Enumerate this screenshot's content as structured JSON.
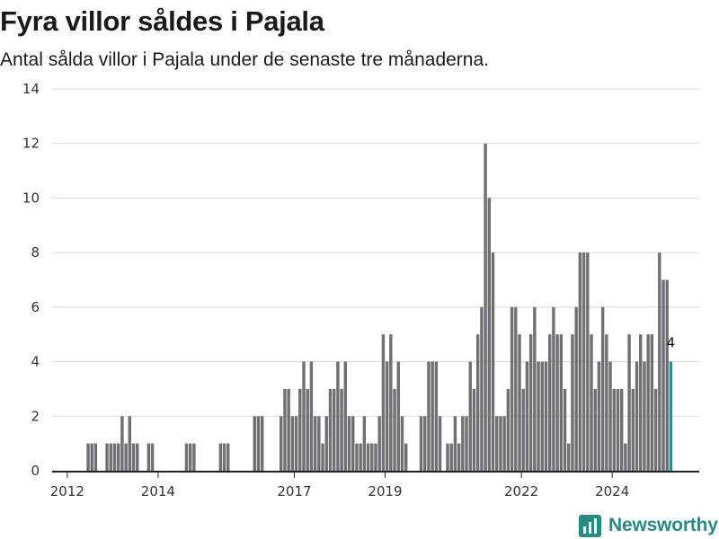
{
  "colors": {
    "bar": "#6f6f74",
    "highlight": "#1a9a8c",
    "grid": "#d9d9d9",
    "axis": "#222222",
    "brand": "#2a8a82"
  },
  "header": {
    "title": "Fyra villor såldes i Pajala",
    "subtitle": "Antal sålda villor i Pajala under de senaste tre månaderna."
  },
  "brand": {
    "name": "Newsworthy",
    "logo_icon": "bar-chart-logo-icon"
  },
  "chart_data": {
    "type": "bar",
    "title": "Fyra villor såldes i Pajala",
    "subtitle": "Antal sålda villor i Pajala under de senaste tre månaderna.",
    "xlabel": "",
    "ylabel": "",
    "ylim": [
      0,
      14
    ],
    "y_ticks": [
      0,
      2,
      4,
      6,
      8,
      10,
      12,
      14
    ],
    "x_tick_labels": [
      "2012",
      "2014",
      "2017",
      "2019",
      "2022",
      "2024"
    ],
    "x_range": [
      "2011-09",
      "2025-12"
    ],
    "period": "rolling 3-month total, monthly steps",
    "grid": true,
    "legend": "none",
    "highlight_label": "4",
    "series": [
      {
        "values": [
          {
            "x": "2012-06",
            "y": 1
          },
          {
            "x": "2012-07",
            "y": 1
          },
          {
            "x": "2012-08",
            "y": 1
          },
          {
            "x": "2012-11",
            "y": 1
          },
          {
            "x": "2012-12",
            "y": 1
          },
          {
            "x": "2013-01",
            "y": 1
          },
          {
            "x": "2013-02",
            "y": 1
          },
          {
            "x": "2013-03",
            "y": 2
          },
          {
            "x": "2013-04",
            "y": 1
          },
          {
            "x": "2013-05",
            "y": 2
          },
          {
            "x": "2013-06",
            "y": 1
          },
          {
            "x": "2013-07",
            "y": 1
          },
          {
            "x": "2013-10",
            "y": 1
          },
          {
            "x": "2013-11",
            "y": 1
          },
          {
            "x": "2014-08",
            "y": 1
          },
          {
            "x": "2014-09",
            "y": 1
          },
          {
            "x": "2014-10",
            "y": 1
          },
          {
            "x": "2015-05",
            "y": 1
          },
          {
            "x": "2015-06",
            "y": 1
          },
          {
            "x": "2015-07",
            "y": 1
          },
          {
            "x": "2016-02",
            "y": 2
          },
          {
            "x": "2016-03",
            "y": 2
          },
          {
            "x": "2016-04",
            "y": 2
          },
          {
            "x": "2016-09",
            "y": 2
          },
          {
            "x": "2016-10",
            "y": 3
          },
          {
            "x": "2016-11",
            "y": 3
          },
          {
            "x": "2016-12",
            "y": 2
          },
          {
            "x": "2017-01",
            "y": 2
          },
          {
            "x": "2017-02",
            "y": 3
          },
          {
            "x": "2017-03",
            "y": 4
          },
          {
            "x": "2017-04",
            "y": 3
          },
          {
            "x": "2017-05",
            "y": 4
          },
          {
            "x": "2017-06",
            "y": 2
          },
          {
            "x": "2017-07",
            "y": 2
          },
          {
            "x": "2017-08",
            "y": 1
          },
          {
            "x": "2017-09",
            "y": 2
          },
          {
            "x": "2017-10",
            "y": 3
          },
          {
            "x": "2017-11",
            "y": 3
          },
          {
            "x": "2017-12",
            "y": 4
          },
          {
            "x": "2018-01",
            "y": 3
          },
          {
            "x": "2018-02",
            "y": 4
          },
          {
            "x": "2018-03",
            "y": 2
          },
          {
            "x": "2018-04",
            "y": 2
          },
          {
            "x": "2018-05",
            "y": 1
          },
          {
            "x": "2018-06",
            "y": 1
          },
          {
            "x": "2018-07",
            "y": 2
          },
          {
            "x": "2018-08",
            "y": 1
          },
          {
            "x": "2018-09",
            "y": 1
          },
          {
            "x": "2018-10",
            "y": 1
          },
          {
            "x": "2018-11",
            "y": 2
          },
          {
            "x": "2018-12",
            "y": 5
          },
          {
            "x": "2019-01",
            "y": 4
          },
          {
            "x": "2019-02",
            "y": 5
          },
          {
            "x": "2019-03",
            "y": 3
          },
          {
            "x": "2019-04",
            "y": 4
          },
          {
            "x": "2019-05",
            "y": 2
          },
          {
            "x": "2019-06",
            "y": 1
          },
          {
            "x": "2019-10",
            "y": 2
          },
          {
            "x": "2019-11",
            "y": 2
          },
          {
            "x": "2019-12",
            "y": 4
          },
          {
            "x": "2020-01",
            "y": 4
          },
          {
            "x": "2020-02",
            "y": 4
          },
          {
            "x": "2020-03",
            "y": 2
          },
          {
            "x": "2020-05",
            "y": 1
          },
          {
            "x": "2020-06",
            "y": 1
          },
          {
            "x": "2020-07",
            "y": 2
          },
          {
            "x": "2020-08",
            "y": 1
          },
          {
            "x": "2020-09",
            "y": 2
          },
          {
            "x": "2020-10",
            "y": 2
          },
          {
            "x": "2020-11",
            "y": 4
          },
          {
            "x": "2020-12",
            "y": 3
          },
          {
            "x": "2021-01",
            "y": 5
          },
          {
            "x": "2021-02",
            "y": 6
          },
          {
            "x": "2021-03",
            "y": 12
          },
          {
            "x": "2021-04",
            "y": 10
          },
          {
            "x": "2021-05",
            "y": 8
          },
          {
            "x": "2021-06",
            "y": 2
          },
          {
            "x": "2021-07",
            "y": 2
          },
          {
            "x": "2021-08",
            "y": 2
          },
          {
            "x": "2021-09",
            "y": 3
          },
          {
            "x": "2021-10",
            "y": 6
          },
          {
            "x": "2021-11",
            "y": 6
          },
          {
            "x": "2021-12",
            "y": 5
          },
          {
            "x": "2022-01",
            "y": 3
          },
          {
            "x": "2022-02",
            "y": 4
          },
          {
            "x": "2022-03",
            "y": 5
          },
          {
            "x": "2022-04",
            "y": 6
          },
          {
            "x": "2022-05",
            "y": 4
          },
          {
            "x": "2022-06",
            "y": 4
          },
          {
            "x": "2022-07",
            "y": 4
          },
          {
            "x": "2022-08",
            "y": 5
          },
          {
            "x": "2022-09",
            "y": 6
          },
          {
            "x": "2022-10",
            "y": 5
          },
          {
            "x": "2022-11",
            "y": 5
          },
          {
            "x": "2022-12",
            "y": 3
          },
          {
            "x": "2023-01",
            "y": 1
          },
          {
            "x": "2023-02",
            "y": 5
          },
          {
            "x": "2023-03",
            "y": 6
          },
          {
            "x": "2023-04",
            "y": 8
          },
          {
            "x": "2023-05",
            "y": 8
          },
          {
            "x": "2023-06",
            "y": 8
          },
          {
            "x": "2023-07",
            "y": 5
          },
          {
            "x": "2023-08",
            "y": 3
          },
          {
            "x": "2023-09",
            "y": 4
          },
          {
            "x": "2023-10",
            "y": 6
          },
          {
            "x": "2023-11",
            "y": 5
          },
          {
            "x": "2023-12",
            "y": 4
          },
          {
            "x": "2024-01",
            "y": 3
          },
          {
            "x": "2024-02",
            "y": 3
          },
          {
            "x": "2024-03",
            "y": 3
          },
          {
            "x": "2024-04",
            "y": 1
          },
          {
            "x": "2024-05",
            "y": 5
          },
          {
            "x": "2024-06",
            "y": 3
          },
          {
            "x": "2024-07",
            "y": 4
          },
          {
            "x": "2024-08",
            "y": 5
          },
          {
            "x": "2024-09",
            "y": 4
          },
          {
            "x": "2024-10",
            "y": 5
          },
          {
            "x": "2024-11",
            "y": 5
          },
          {
            "x": "2024-12",
            "y": 3
          },
          {
            "x": "2025-01",
            "y": 8
          },
          {
            "x": "2025-02",
            "y": 7
          },
          {
            "x": "2025-03",
            "y": 7
          },
          {
            "x": "2025-04",
            "y": 4
          }
        ]
      }
    ]
  }
}
